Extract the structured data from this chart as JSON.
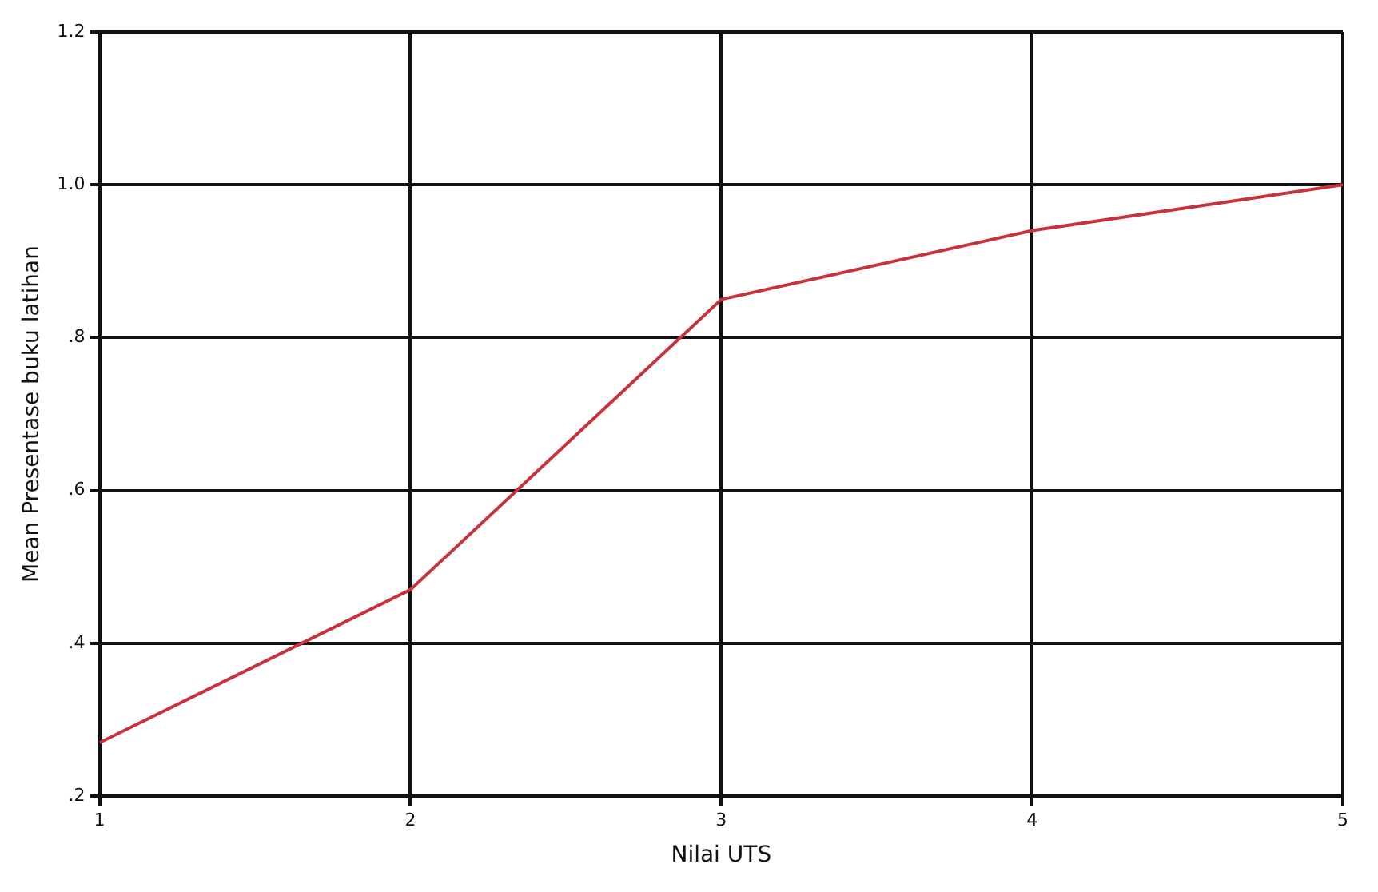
{
  "chart_data": {
    "type": "line",
    "xlabel": "Nilai UTS",
    "ylabel": "Mean Presentase buku latihan",
    "x": [
      1,
      2,
      3,
      4,
      5
    ],
    "series": [
      {
        "color": "#c8323a",
        "values": [
          0.27,
          0.47,
          0.85,
          0.94,
          1.0
        ]
      }
    ],
    "xlim": [
      1,
      5
    ],
    "xticks": [
      1,
      2,
      3,
      4,
      5
    ],
    "ylim": [
      0.2,
      1.2
    ],
    "yticks": [
      {
        "value": 0.2,
        "label": ".2"
      },
      {
        "value": 0.4,
        "label": ".4"
      },
      {
        "value": 0.6,
        "label": ".6"
      },
      {
        "value": 0.8,
        "label": ".8"
      },
      {
        "value": 1.0,
        "label": "1.0"
      },
      {
        "value": 1.2,
        "label": "1.2"
      }
    ],
    "grid": true,
    "legend": false,
    "marker": "none",
    "line_style": "solid"
  }
}
